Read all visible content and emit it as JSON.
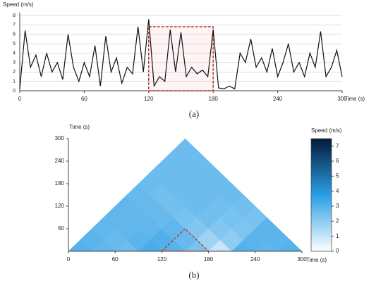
{
  "chart_data": [
    {
      "type": "line",
      "label": "(a)",
      "y_label": "Speed (m/s)",
      "x_label": "Time (s)",
      "x": [
        0,
        5,
        10,
        15,
        20,
        25,
        30,
        35,
        40,
        45,
        50,
        55,
        60,
        65,
        70,
        75,
        80,
        85,
        90,
        95,
        100,
        105,
        110,
        115,
        120,
        125,
        130,
        135,
        140,
        145,
        150,
        155,
        160,
        165,
        170,
        175,
        180,
        185,
        190,
        195,
        200,
        205,
        210,
        215,
        220,
        225,
        230,
        235,
        240,
        245,
        250,
        255,
        260,
        265,
        270,
        275,
        280,
        285,
        290,
        295,
        300
      ],
      "values": [
        0.2,
        6.4,
        2.5,
        3.8,
        1.5,
        4,
        2,
        3,
        1.2,
        6,
        2.5,
        1,
        3,
        1.5,
        4.8,
        0.5,
        5.8,
        2,
        3.5,
        0.8,
        2.5,
        1.8,
        6.8,
        2,
        7.6,
        0.5,
        1.5,
        1,
        6.5,
        2,
        6.2,
        1.5,
        2.5,
        1.8,
        2.2,
        1.5,
        6.5,
        0.3,
        0.2,
        0.5,
        0.2,
        4,
        3,
        5.5,
        2.5,
        3.5,
        2,
        4.5,
        1.5,
        3,
        5,
        2,
        3,
        1.5,
        4,
        2.5,
        6.3,
        1.5,
        2.5,
        4.3,
        1.5
      ],
      "color": "#111111",
      "xlim": [
        0,
        300
      ],
      "xticks": [
        0,
        60,
        120,
        180,
        240,
        300
      ],
      "ylim": [
        0,
        8
      ],
      "yticks": [
        0,
        1,
        2,
        3,
        4,
        5,
        6,
        7,
        8
      ],
      "grid": true,
      "highlight": {
        "xlim": [
          120,
          180
        ],
        "ylim": [
          0,
          6.8
        ],
        "color": "#b03a2e"
      }
    },
    {
      "type": "heatmap",
      "label": "(b)",
      "y_label": "Time (s)",
      "x_label": "Time (s)",
      "colorbar_label": "Speed (m/s)",
      "bins": [
        0,
        30,
        60,
        90,
        120,
        150,
        180,
        210,
        240,
        270,
        300
      ],
      "values": [
        [
          3.0,
          2.9,
          2.8,
          2.8,
          2.8,
          2.7,
          2.6,
          2.6,
          2.6,
          2.6
        ],
        [
          null,
          2.8,
          2.7,
          2.8,
          2.8,
          2.7,
          2.5,
          2.6,
          2.6,
          2.6
        ],
        [
          null,
          null,
          2.6,
          2.9,
          2.8,
          2.7,
          2.5,
          2.6,
          2.6,
          2.6
        ],
        [
          null,
          null,
          null,
          3.2,
          3.1,
          2.8,
          2.4,
          2.6,
          2.6,
          2.6
        ],
        [
          null,
          null,
          null,
          null,
          3.0,
          2.7,
          2.2,
          2.5,
          2.5,
          2.6
        ],
        [
          null,
          null,
          null,
          null,
          null,
          2.4,
          1.7,
          2.2,
          2.4,
          2.5
        ],
        [
          null,
          null,
          null,
          null,
          null,
          null,
          1.0,
          2.0,
          2.3,
          2.4
        ],
        [
          null,
          null,
          null,
          null,
          null,
          null,
          null,
          3.0,
          2.9,
          2.9
        ],
        [
          null,
          null,
          null,
          null,
          null,
          null,
          null,
          null,
          2.8,
          2.9
        ],
        [
          null,
          null,
          null,
          null,
          null,
          null,
          null,
          null,
          null,
          3.0
        ]
      ],
      "xlim": [
        0,
        300
      ],
      "xticks": [
        0,
        60,
        120,
        180,
        240,
        300
      ],
      "ylim": [
        0,
        300
      ],
      "yticks": [
        60,
        120,
        180,
        240,
        300
      ],
      "clim": [
        0,
        7.5
      ],
      "cticks": [
        0,
        1,
        2,
        3,
        4,
        5,
        6,
        7
      ],
      "colors": [
        "#ffffff",
        "#2b9fe6",
        "#031a3a"
      ],
      "highlight": {
        "xlim": [
          120,
          180
        ],
        "color": "#b03a2e"
      }
    }
  ]
}
